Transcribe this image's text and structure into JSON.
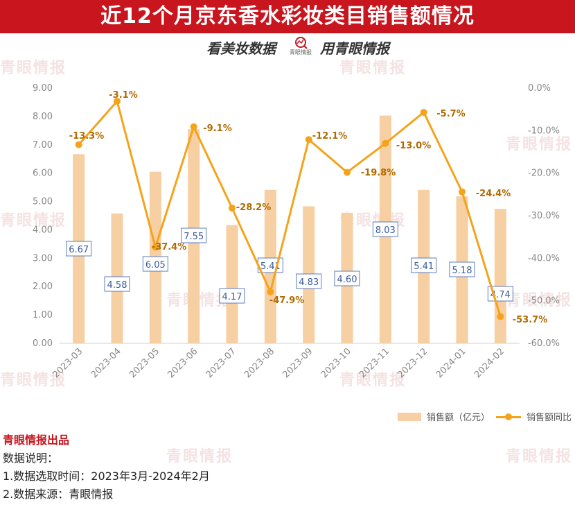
{
  "header": {
    "title": "近12个月京东香水彩妆类目销售额情况",
    "sub_left": "看美妆数据",
    "sub_logo": "青眼情报",
    "sub_right": "用青眼情报"
  },
  "watermark": "青眼情报",
  "colors": {
    "banner": "#c9151e",
    "bar": "#f6cfa2",
    "line": "#f5a31a",
    "bar_label": "#3a5ba0",
    "line_label": "#b06a00"
  },
  "chart_data": {
    "type": "bar+line",
    "categories": [
      "2023-03",
      "2023-04",
      "2023-05",
      "2023-06",
      "2023-07",
      "2023-08",
      "2023-09",
      "2023-10",
      "2023-11",
      "2023-12",
      "2024-01",
      "2024-02"
    ],
    "series": [
      {
        "name": "销售额（亿元）",
        "type": "bar",
        "axis": "left",
        "values": [
          6.67,
          4.58,
          6.05,
          7.55,
          4.17,
          5.41,
          4.83,
          4.6,
          8.03,
          5.41,
          5.18,
          4.74
        ],
        "labels": [
          "6.67",
          "4.58",
          "6.05",
          "7.55",
          "4.17",
          "5.41",
          "4.83",
          "4.60",
          "8.03",
          "5.41",
          "5.18",
          "4.74"
        ]
      },
      {
        "name": "销售额同比",
        "type": "line",
        "axis": "right",
        "values": [
          -13.3,
          -3.1,
          -37.4,
          -9.1,
          -28.2,
          -47.9,
          -12.1,
          -19.8,
          -13.0,
          -5.7,
          -24.4,
          -53.7
        ],
        "labels": [
          "-13.3%",
          "-3.1%",
          "-37.4%",
          "-9.1%",
          "-28.2%",
          "-47.9%",
          "-12.1%",
          "-19.8%",
          "-13.0%",
          "-5.7%",
          "-24.4%",
          "-53.7%"
        ]
      }
    ],
    "y_left": {
      "range": [
        0,
        9
      ],
      "ticks": [
        "0.00",
        "1.00",
        "2.00",
        "3.00",
        "4.00",
        "5.00",
        "6.00",
        "7.00",
        "8.00",
        "9.00"
      ]
    },
    "y_right": {
      "range": [
        -60,
        0
      ],
      "ticks": [
        "-60.0%",
        "-50.0%",
        "-40.0%",
        "-30.0%",
        "-20.0%",
        "-10.0%",
        "0.0%"
      ]
    },
    "grid": false,
    "legend": "bottom-right"
  },
  "footer": {
    "brand": "青眼情报出品",
    "line1": "数据说明：",
    "line2": "1.数据选取时间：2023年3月-2024年2月",
    "line3": "2.数据来源：青眼情报"
  }
}
